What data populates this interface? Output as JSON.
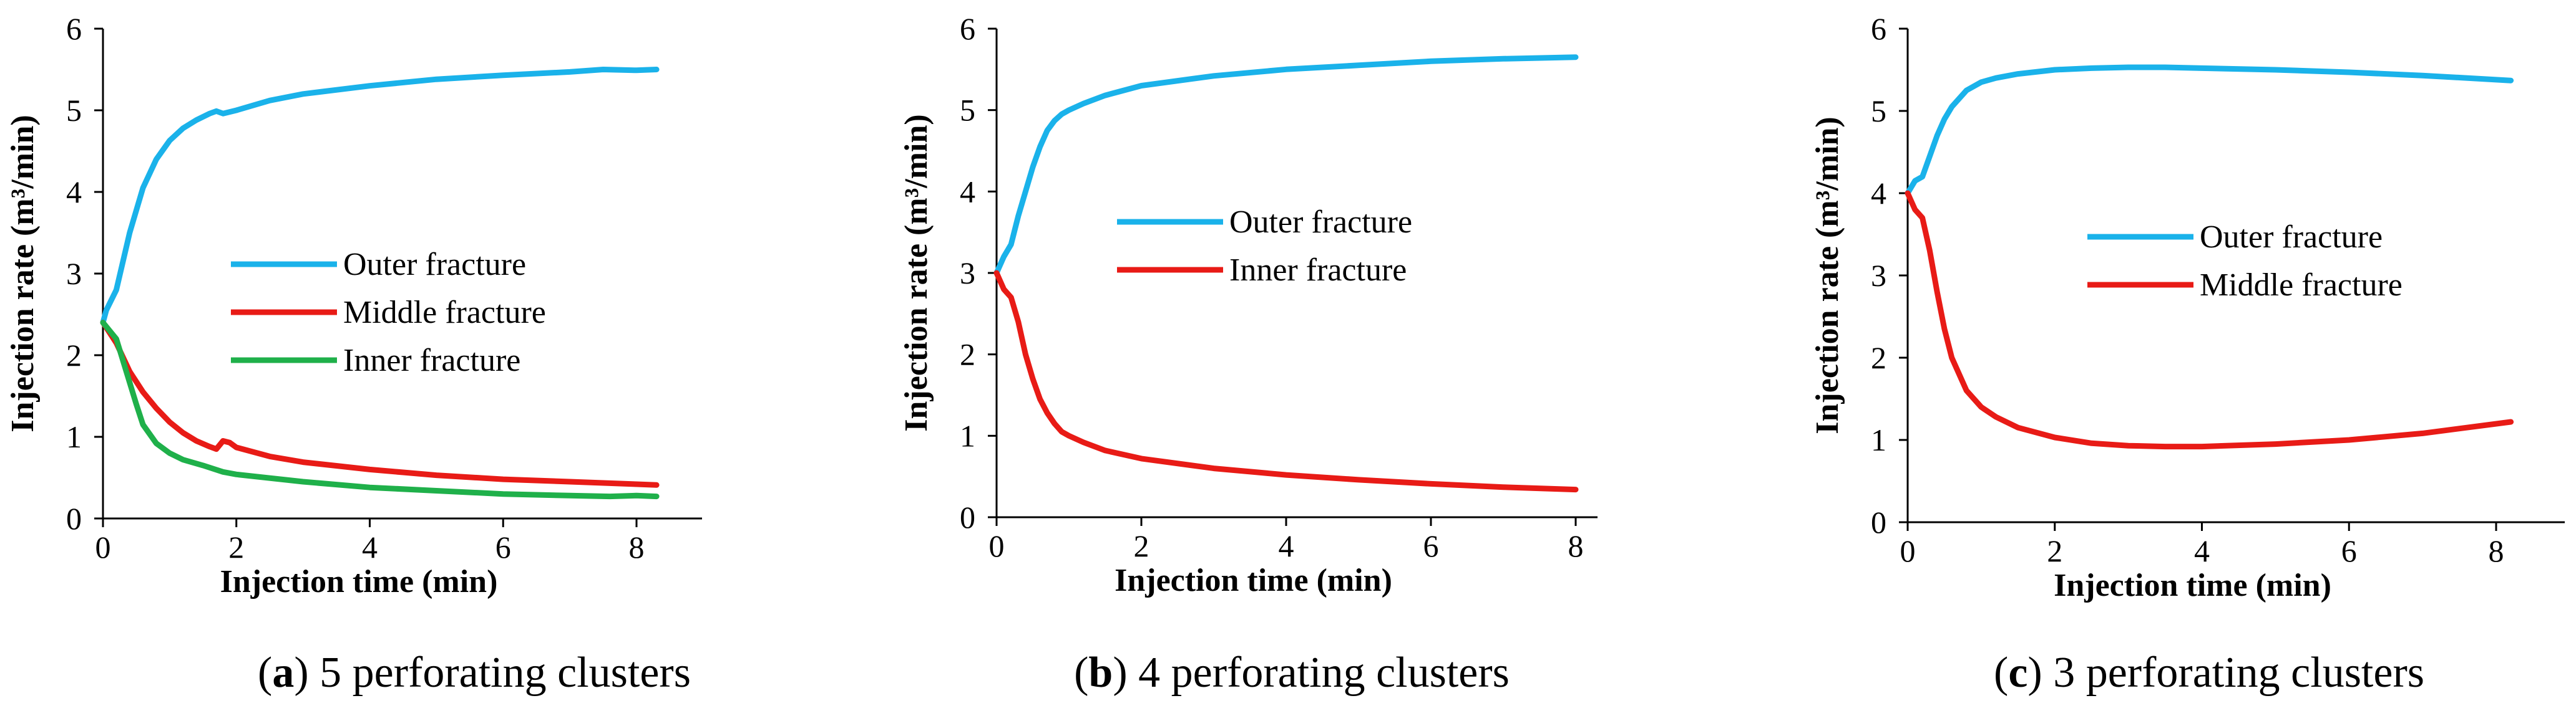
{
  "chart_data": [
    {
      "type": "line",
      "caption_letter": "a",
      "caption_text": " 5 perforating clusters",
      "xlabel": "Injection time (min)",
      "ylabel": "Injection rate  (m³/min)",
      "xlim": [
        0,
        9
      ],
      "ylim": [
        0,
        6
      ],
      "xticks": [
        0,
        2,
        4,
        6,
        8
      ],
      "yticks": [
        0,
        1,
        2,
        3,
        4,
        5,
        6
      ],
      "legend_position": "center",
      "series": [
        {
          "name": "Outer fracture",
          "color": "#1ab2ea",
          "x": [
            0,
            0.05,
            0.2,
            0.4,
            0.6,
            0.8,
            1.0,
            1.2,
            1.4,
            1.6,
            1.7,
            1.8,
            1.9,
            2.0,
            2.5,
            3.0,
            4.0,
            5.0,
            6.0,
            7.0,
            7.5,
            8.0,
            8.3
          ],
          "values": [
            2.4,
            2.55,
            2.8,
            3.5,
            4.05,
            4.4,
            4.63,
            4.78,
            4.88,
            4.96,
            4.99,
            4.96,
            4.98,
            5.0,
            5.12,
            5.2,
            5.3,
            5.38,
            5.43,
            5.47,
            5.5,
            5.49,
            5.5
          ]
        },
        {
          "name": "Middle fracture",
          "color": "#e81b16",
          "x": [
            0,
            0.2,
            0.4,
            0.6,
            0.8,
            1.0,
            1.2,
            1.4,
            1.6,
            1.7,
            1.8,
            1.9,
            2.0,
            2.5,
            3.0,
            4.0,
            5.0,
            6.0,
            7.0,
            8.0,
            8.3
          ],
          "values": [
            2.4,
            2.15,
            1.8,
            1.55,
            1.35,
            1.18,
            1.05,
            0.95,
            0.88,
            0.85,
            0.95,
            0.93,
            0.87,
            0.76,
            0.69,
            0.6,
            0.53,
            0.48,
            0.45,
            0.42,
            0.41
          ]
        },
        {
          "name": "Inner fracture",
          "color": "#1fb04a",
          "x": [
            0,
            0.2,
            0.35,
            0.5,
            0.6,
            0.8,
            1.0,
            1.2,
            1.5,
            1.8,
            2.0,
            3.0,
            4.0,
            5.0,
            6.0,
            7.0,
            7.6,
            8.0,
            8.3
          ],
          "values": [
            2.4,
            2.2,
            1.8,
            1.4,
            1.15,
            0.92,
            0.8,
            0.72,
            0.65,
            0.57,
            0.54,
            0.45,
            0.38,
            0.34,
            0.3,
            0.28,
            0.27,
            0.28,
            0.27
          ]
        }
      ]
    },
    {
      "type": "line",
      "caption_letter": "b",
      "caption_text": " 4 perforating clusters",
      "xlabel": "Injection time (min)",
      "ylabel": "Injection rate  (m³/min)",
      "xlim": [
        0,
        9
      ],
      "ylim": [
        0,
        6
      ],
      "xticks": [
        0,
        2,
        4,
        6,
        8
      ],
      "yticks": [
        0,
        1,
        2,
        3,
        4,
        5,
        6
      ],
      "legend_position": "center",
      "series": [
        {
          "name": "Outer fracture",
          "color": "#1ab2ea",
          "x": [
            0,
            0.1,
            0.2,
            0.3,
            0.4,
            0.5,
            0.6,
            0.7,
            0.8,
            0.9,
            1.0,
            1.2,
            1.5,
            2.0,
            3.0,
            4.0,
            5.0,
            6.0,
            7.0,
            8.0
          ],
          "values": [
            3.0,
            3.2,
            3.35,
            3.7,
            4.0,
            4.3,
            4.55,
            4.75,
            4.87,
            4.95,
            5.0,
            5.08,
            5.18,
            5.3,
            5.42,
            5.5,
            5.55,
            5.6,
            5.63,
            5.65
          ]
        },
        {
          "name": "Inner fracture",
          "color": "#e81b16",
          "x": [
            0,
            0.1,
            0.2,
            0.3,
            0.4,
            0.5,
            0.6,
            0.7,
            0.8,
            0.9,
            1.0,
            1.2,
            1.5,
            2.0,
            3.0,
            4.0,
            5.0,
            6.0,
            7.0,
            8.0
          ],
          "values": [
            3.0,
            2.8,
            2.7,
            2.4,
            2.0,
            1.7,
            1.45,
            1.28,
            1.15,
            1.05,
            1.0,
            0.92,
            0.82,
            0.72,
            0.6,
            0.52,
            0.46,
            0.41,
            0.37,
            0.34
          ]
        }
      ]
    },
    {
      "type": "line",
      "caption_letter": "c",
      "caption_text": " 3 perforating clusters",
      "xlabel": "Injection time (min)",
      "ylabel": "Injection rate  (m³/min)",
      "xlim": [
        0,
        9
      ],
      "ylim": [
        0,
        6
      ],
      "xticks": [
        0,
        2,
        4,
        6,
        8
      ],
      "yticks": [
        0,
        1,
        2,
        3,
        4,
        5,
        6
      ],
      "legend_position": "center",
      "series": [
        {
          "name": "Outer fracture",
          "color": "#1ab2ea",
          "x": [
            0,
            0.1,
            0.2,
            0.3,
            0.4,
            0.5,
            0.6,
            0.8,
            1.0,
            1.2,
            1.5,
            2.0,
            2.5,
            3.0,
            3.5,
            4.0,
            5.0,
            6.0,
            7.0,
            8.2
          ],
          "values": [
            4.0,
            4.15,
            4.2,
            4.45,
            4.7,
            4.9,
            5.05,
            5.25,
            5.35,
            5.4,
            5.45,
            5.5,
            5.52,
            5.53,
            5.53,
            5.52,
            5.5,
            5.47,
            5.43,
            5.37
          ]
        },
        {
          "name": "Middle fracture",
          "color": "#e81b16",
          "x": [
            0,
            0.1,
            0.2,
            0.3,
            0.4,
            0.5,
            0.6,
            0.8,
            1.0,
            1.2,
            1.5,
            2.0,
            2.5,
            3.0,
            3.5,
            4.0,
            5.0,
            6.0,
            7.0,
            8.2
          ],
          "values": [
            4.0,
            3.8,
            3.7,
            3.3,
            2.8,
            2.35,
            2.0,
            1.6,
            1.4,
            1.28,
            1.15,
            1.03,
            0.96,
            0.93,
            0.92,
            0.92,
            0.95,
            1.0,
            1.08,
            1.22
          ]
        }
      ]
    }
  ]
}
